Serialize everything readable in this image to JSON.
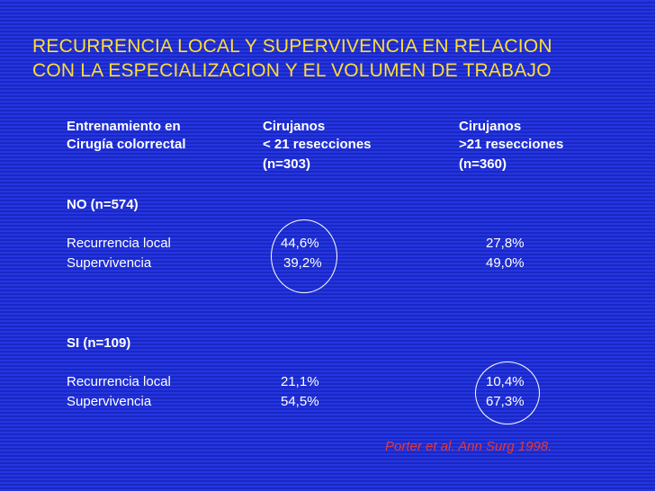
{
  "slide": {
    "title_line1": "RECURRENCIA LOCAL Y SUPERVIVENCIA EN RELACION",
    "title_line2": "CON LA ESPECIALIZACION Y EL VOLUMEN DE TRABAJO",
    "header": {
      "col1_line1": "Entrenamiento en",
      "col1_line2": "Cirugía colorrectal",
      "col2_line1": "Cirujanos",
      "col2_line2": "< 21 resecciones",
      "col2_line3": "(n=303)",
      "col3_line1": "Cirujanos",
      "col3_line2": ">21 resecciones",
      "col3_line3": "(n=360)"
    },
    "group_no": {
      "label": "NO  (n=574)",
      "rows": [
        {
          "label": "Recurrencia local",
          "v1": "44,6%",
          "v2": "27,8%"
        },
        {
          "label": "Supervivencia",
          "v1": "39,2%",
          "v2": "49,0%"
        }
      ]
    },
    "group_si": {
      "label": "SI  (n=109)",
      "rows": [
        {
          "label": "Recurrencia local",
          "v1": "21,1%",
          "v2": "10,4%"
        },
        {
          "label": "Supervivencia",
          "v1": "54,5%",
          "v2": "67,3%"
        }
      ]
    },
    "citation": "Porter et al. Ann Surg 1998."
  }
}
